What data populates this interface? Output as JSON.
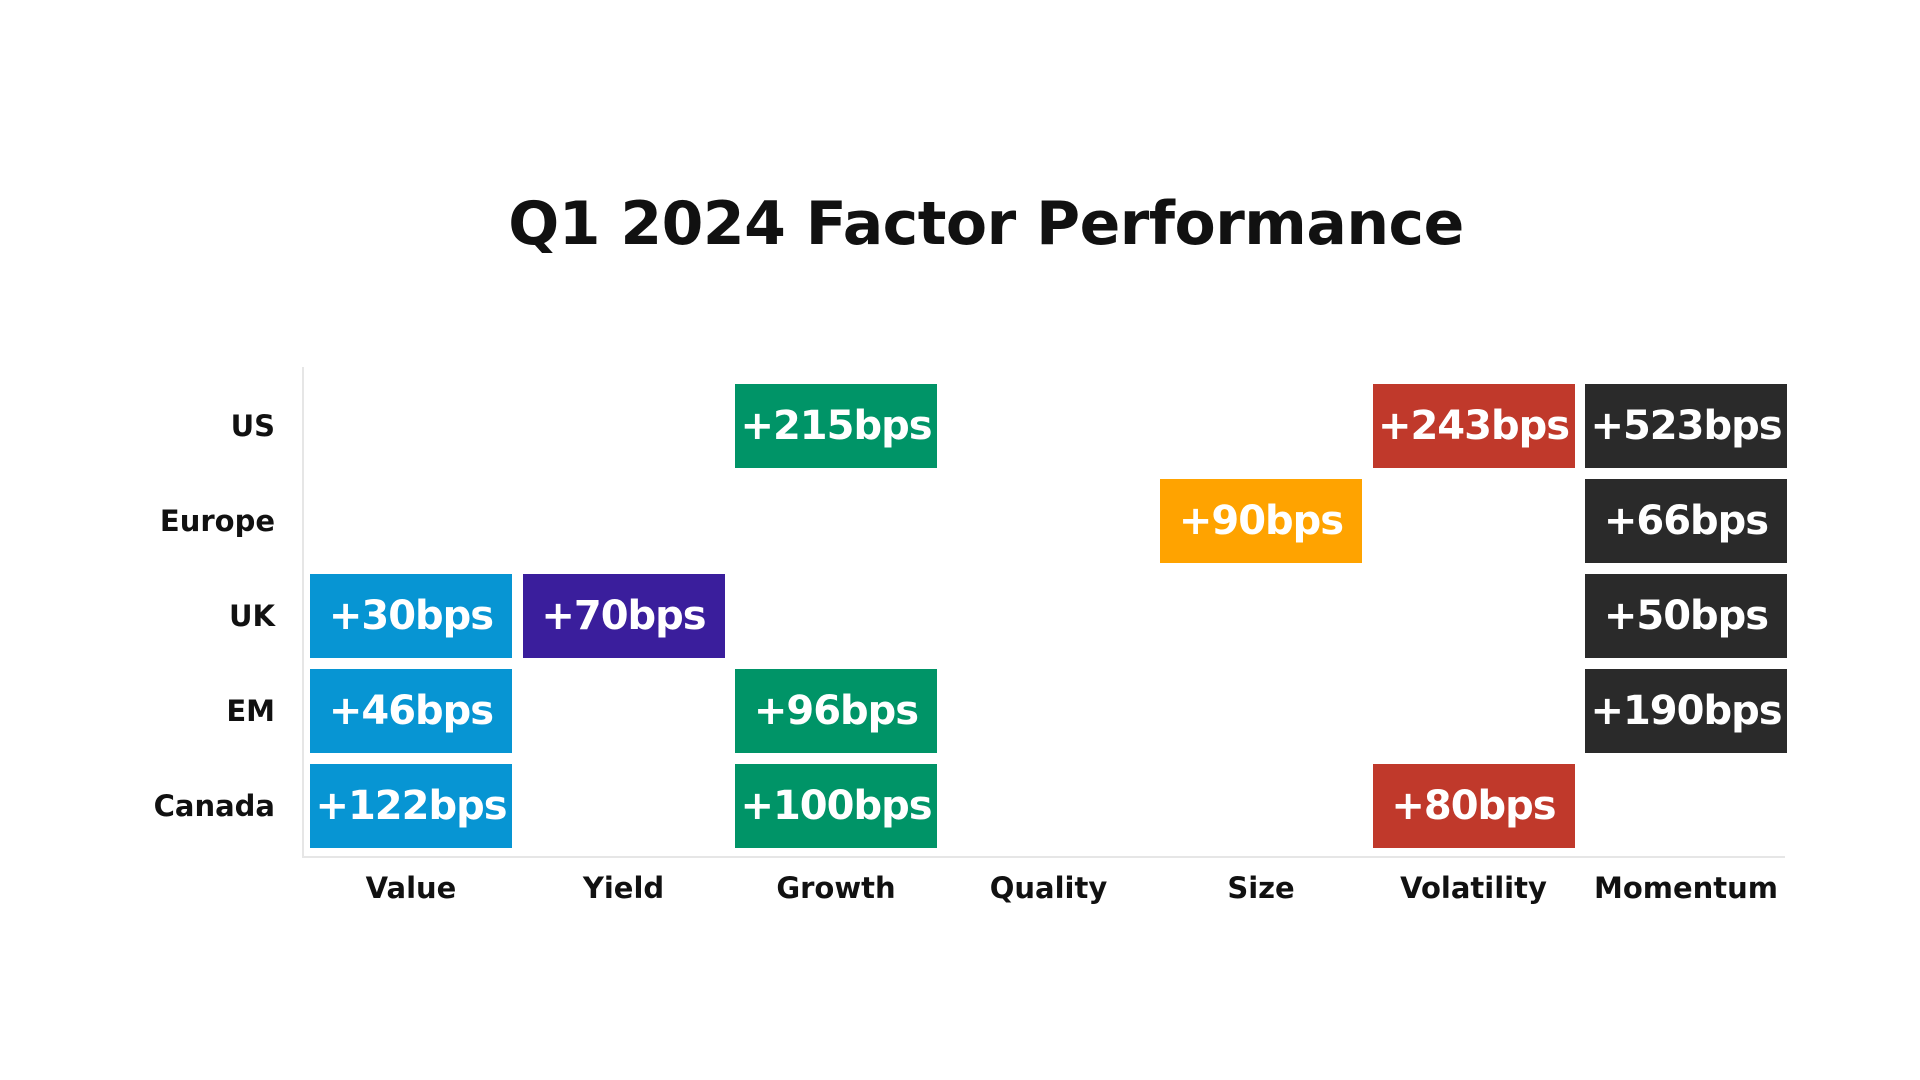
{
  "colors": {
    "Value": "#0795d3",
    "Yield": "#3a1e9c",
    "Growth": "#009467",
    "Quality": "#7a7a7a",
    "Size": "#ffa300",
    "Volatility": "#c0392b",
    "Momentum": "#2a2a2a"
  },
  "chart_data": {
    "type": "heatmap",
    "title": "Q1 2024 Factor Performance",
    "xlabel": "",
    "ylabel": "",
    "grid": false,
    "legend": "none",
    "columns": [
      "Value",
      "Yield",
      "Growth",
      "Quality",
      "Size",
      "Volatility",
      "Momentum"
    ],
    "rows": [
      "US",
      "Europe",
      "UK",
      "EM",
      "Canada"
    ],
    "unit": "bps",
    "cells": [
      {
        "row": "US",
        "col": "Growth",
        "value": 215,
        "label": "+215bps"
      },
      {
        "row": "US",
        "col": "Volatility",
        "value": 243,
        "label": "+243bps"
      },
      {
        "row": "US",
        "col": "Momentum",
        "value": 523,
        "label": "+523bps"
      },
      {
        "row": "Europe",
        "col": "Size",
        "value": 90,
        "label": "+90bps"
      },
      {
        "row": "Europe",
        "col": "Momentum",
        "value": 66,
        "label": "+66bps"
      },
      {
        "row": "UK",
        "col": "Value",
        "value": 30,
        "label": "+30bps"
      },
      {
        "row": "UK",
        "col": "Yield",
        "value": 70,
        "label": "+70bps"
      },
      {
        "row": "UK",
        "col": "Momentum",
        "value": 50,
        "label": "+50bps"
      },
      {
        "row": "EM",
        "col": "Value",
        "value": 46,
        "label": "+46bps"
      },
      {
        "row": "EM",
        "col": "Growth",
        "value": 96,
        "label": "+96bps"
      },
      {
        "row": "EM",
        "col": "Momentum",
        "value": 190,
        "label": "+190bps"
      },
      {
        "row": "Canada",
        "col": "Value",
        "value": 122,
        "label": "+122bps"
      },
      {
        "row": "Canada",
        "col": "Growth",
        "value": 100,
        "label": "+100bps"
      },
      {
        "row": "Canada",
        "col": "Volatility",
        "value": 80,
        "label": "+80bps"
      }
    ]
  }
}
